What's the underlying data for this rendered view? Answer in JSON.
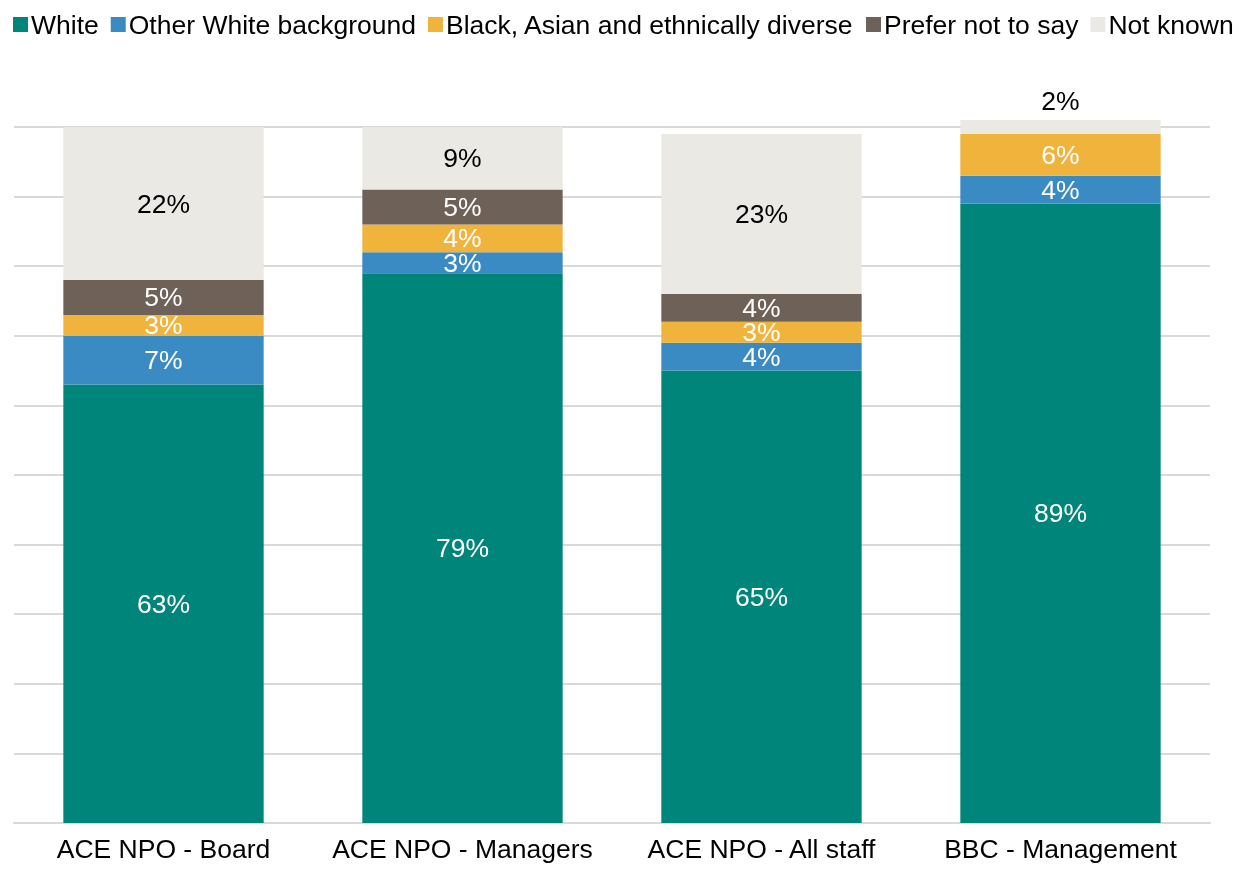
{
  "chart_data": {
    "type": "bar",
    "stacked": true,
    "categories": [
      "ACE NPO - Board",
      "ACE NPO - Managers",
      "ACE NPO - All staff",
      "BBC - Management"
    ],
    "series": [
      {
        "name": "White",
        "color": "#00857a",
        "values": [
          63,
          79,
          65,
          89
        ],
        "value_labels": [
          "63%",
          "79%",
          "65%",
          "89%"
        ]
      },
      {
        "name": "Other White background",
        "color": "#3a8bc3",
        "values": [
          7,
          3,
          4,
          4
        ],
        "value_labels": [
          "7%",
          "3%",
          "4%",
          "4%"
        ]
      },
      {
        "name": "Black, Asian and ethnically diverse",
        "color": "#f0b33c",
        "values": [
          3,
          4,
          3,
          6
        ],
        "value_labels": [
          "3%",
          "4%",
          "3%",
          "6%"
        ]
      },
      {
        "name": "Prefer not to say",
        "color": "#6e6158",
        "values": [
          5,
          5,
          4,
          null
        ],
        "value_labels": [
          "5%",
          "5%",
          "4%",
          null
        ]
      },
      {
        "name": "Not known",
        "color": "#ebe9e4",
        "values": [
          22,
          9,
          23,
          2
        ],
        "value_labels": [
          "22%",
          "9%",
          "23%",
          "2%"
        ]
      }
    ],
    "ylim": [
      0,
      101
    ],
    "yticks": [
      {
        "value": 0,
        "label": null
      },
      {
        "value": 10,
        "label": null
      },
      {
        "value": 20,
        "label": null
      },
      {
        "value": 30,
        "label": null
      },
      {
        "value": 40,
        "label": null
      },
      {
        "value": 50,
        "label": null
      },
      {
        "value": 60,
        "label": null
      },
      {
        "value": 70,
        "label": null
      },
      {
        "value": 80,
        "label": null
      },
      {
        "value": 90,
        "label": null
      },
      {
        "value": 100,
        "label": null
      }
    ],
    "tick_labels": "x",
    "grid": "y",
    "legend": "top left"
  }
}
